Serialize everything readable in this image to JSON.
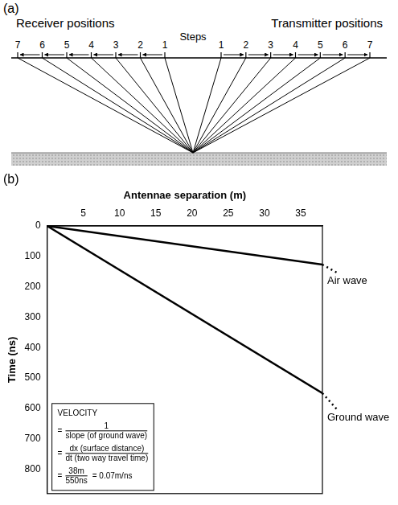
{
  "panel_a": {
    "panel_label": "(a)",
    "receiver_label": "Receiver positions",
    "transmitter_label": "Transmitter positions",
    "steps_label": "Steps",
    "receiver_steps": [
      7,
      6,
      5,
      4,
      3,
      2,
      1
    ],
    "transmitter_steps": [
      1,
      2,
      3,
      4,
      5,
      6,
      7
    ]
  },
  "chart_data": {
    "type": "line",
    "panel_label": "(b)",
    "x_label": "Antennae separation (m)",
    "y_label": "Time (ns)",
    "x": [
      0,
      38
    ],
    "series": [
      {
        "name": "Air wave",
        "color": "#000000",
        "values": [
          0,
          127
        ]
      },
      {
        "name": "Ground wave",
        "color": "#000000",
        "values": [
          0,
          550
        ]
      }
    ],
    "xlim": [
      0,
      38
    ],
    "xticks": [
      5,
      10,
      15,
      20,
      25,
      30,
      35
    ],
    "ylim": [
      0,
      880
    ],
    "yticks": [
      0,
      100,
      200,
      300,
      400,
      500,
      600,
      700,
      800
    ],
    "grid": false,
    "annotation": [
      {
        "text": "VELOCITY"
      },
      {
        "prefix": "=",
        "numerator": "1",
        "denominator": "slope (of ground wave)"
      },
      {
        "prefix": "=",
        "numerator": "dx (surface distance)",
        "denominator": "dt (two way travel time)"
      },
      {
        "prefix": "=",
        "numerator": "38m",
        "denominator": "550ns",
        "suffix": "= 0.07m/ns"
      }
    ]
  }
}
